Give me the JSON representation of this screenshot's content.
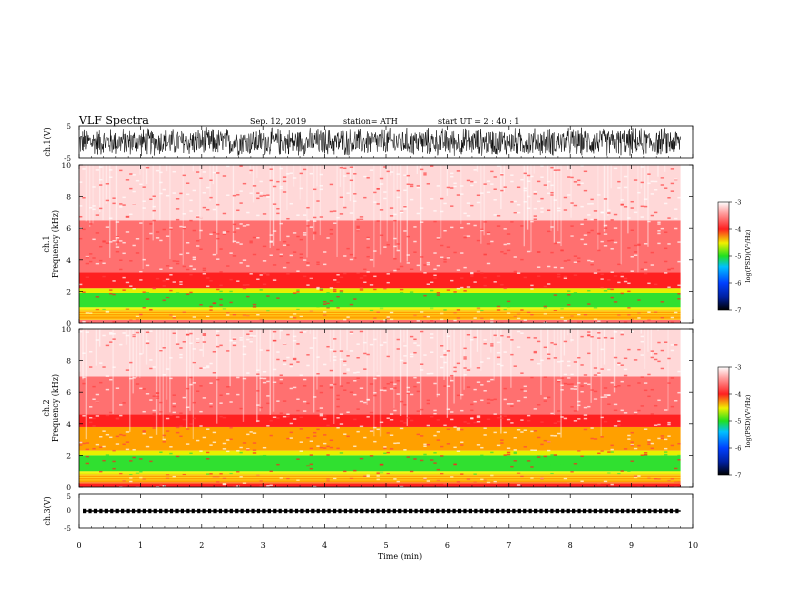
{
  "header": {
    "title": "VLF  Spectra",
    "date": "Sep. 12, 2019",
    "station": "station= ATH",
    "start": "start  UT  =   2 : 40 : 1"
  },
  "colors": {
    "red": "#ff2020",
    "pink": "#ffd0d0",
    "yellow": "#f0f000",
    "green": "#20e020",
    "blue": "#0030ff",
    "black": "#000000"
  },
  "chart_data": [
    {
      "type": "line",
      "name": "ch1-waveform",
      "ylabel": "ch.1(V)",
      "ylim": [
        -5,
        5
      ],
      "yticks": [
        "5",
        "-5"
      ],
      "description_values": {
        "amplitude_range": [
          -4.8,
          4.8
        ],
        "mean": 0
      }
    },
    {
      "type": "heatmap",
      "name": "ch1-spectrogram",
      "ylabel": "ch.1\nFrequency (kHz)",
      "ylabel_line1": "ch.1",
      "ylabel_line2": "Frequency (kHz)",
      "ylim": [
        0,
        10
      ],
      "yticks": [
        "0",
        "2",
        "4",
        "6",
        "8",
        "10"
      ],
      "bands_khz": [
        {
          "from": 0.0,
          "to": 0.2,
          "level": -3.6
        },
        {
          "from": 0.2,
          "to": 0.8,
          "level": -4.2
        },
        {
          "from": 0.8,
          "to": 1.0,
          "level": -4.6
        },
        {
          "from": 1.0,
          "to": 1.9,
          "level": -4.9
        },
        {
          "from": 1.9,
          "to": 2.2,
          "level": -4.5
        },
        {
          "from": 2.2,
          "to": 3.2,
          "level": -3.8
        },
        {
          "from": 3.2,
          "to": 6.5,
          "level": -3.5
        },
        {
          "from": 6.5,
          "to": 10.0,
          "level": -3.2
        }
      ]
    },
    {
      "type": "heatmap",
      "name": "ch2-spectrogram",
      "ylabel_line1": "ch.2",
      "ylabel_line2": "Frequency (kHz)",
      "ylim": [
        0,
        10
      ],
      "yticks": [
        "0",
        "2",
        "4",
        "6",
        "8",
        "10"
      ],
      "bands_khz": [
        {
          "from": 0.0,
          "to": 0.3,
          "level": -3.7
        },
        {
          "from": 0.3,
          "to": 0.8,
          "level": -4.2
        },
        {
          "from": 0.8,
          "to": 1.0,
          "level": -4.5
        },
        {
          "from": 1.0,
          "to": 2.0,
          "level": -4.9
        },
        {
          "from": 2.0,
          "to": 2.3,
          "level": -4.5
        },
        {
          "from": 2.3,
          "to": 3.8,
          "level": -4.3
        },
        {
          "from": 3.8,
          "to": 4.6,
          "level": -3.8
        },
        {
          "from": 4.6,
          "to": 7.0,
          "level": -3.5
        },
        {
          "from": 7.0,
          "to": 10.0,
          "level": -3.2
        }
      ]
    },
    {
      "type": "line",
      "name": "ch3-signal",
      "ylabel": "ch.3(V)",
      "ylim": [
        -5,
        5
      ],
      "yticks": [
        "5",
        "0",
        "-5"
      ],
      "level": 0
    }
  ],
  "colorbar": {
    "label": "log(PSD)(V²/Hz)",
    "ticks": [
      "-3",
      "-4",
      "-5",
      "-6",
      "-7"
    ],
    "range": [
      -7,
      -3
    ]
  },
  "xaxis": {
    "label": "Time  (min)",
    "ticks": [
      "0",
      "1",
      "2",
      "3",
      "4",
      "5",
      "6",
      "7",
      "8",
      "9",
      "10"
    ],
    "xlim": [
      0,
      10
    ],
    "data_end": 9.8
  }
}
